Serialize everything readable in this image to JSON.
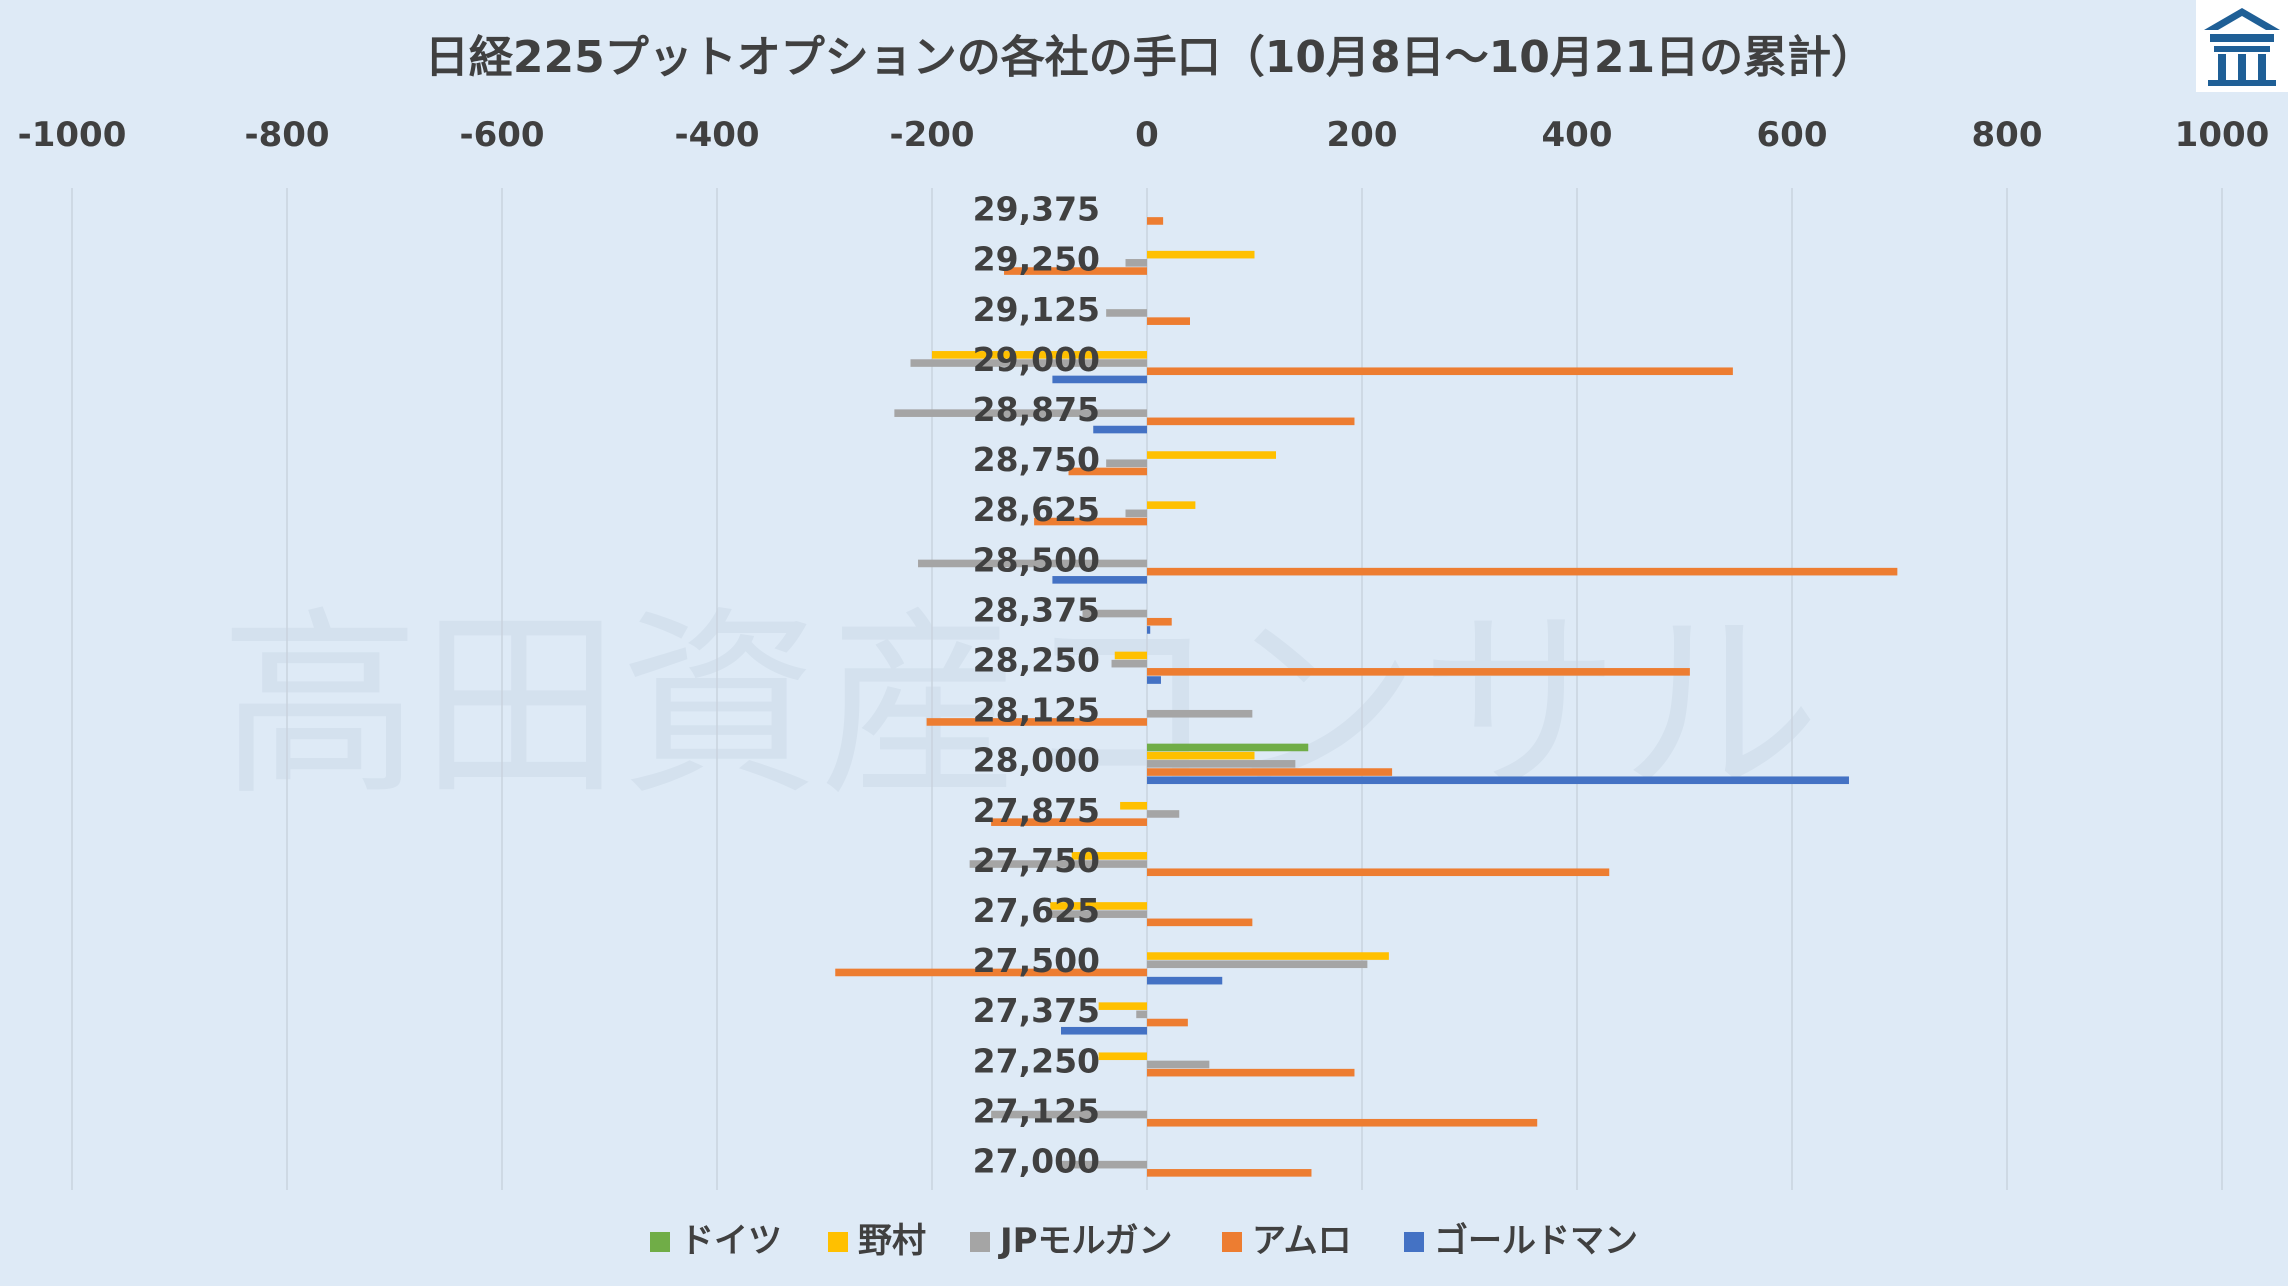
{
  "watermark": "高田資産コンサル",
  "logo": {
    "name": "takata-logo"
  },
  "chart_data": {
    "type": "bar",
    "orientation": "horizontal",
    "title": "日経225プットオプションの各社の手口（10月8日～10月21日の累計）",
    "xlim": [
      -1000,
      1000
    ],
    "xticks": [
      "-1000",
      "-800",
      "-600",
      "-400",
      "-200",
      "0",
      "200",
      "400",
      "600",
      "800",
      "1000"
    ],
    "grid": true,
    "legend_position": "bottom",
    "categories": [
      "29,375",
      "29,250",
      "29,125",
      "29,000",
      "28,875",
      "28,750",
      "28,625",
      "28,500",
      "28,375",
      "28,250",
      "28,125",
      "28,000",
      "27,875",
      "27,750",
      "27,625",
      "27,500",
      "27,375",
      "27,250",
      "27,125",
      "27,000"
    ],
    "series": [
      {
        "name": "ドイツ",
        "color": "#70ad47",
        "values": [
          0,
          0,
          0,
          0,
          0,
          0,
          0,
          0,
          0,
          0,
          0,
          150,
          0,
          0,
          0,
          0,
          0,
          0,
          0,
          0
        ]
      },
      {
        "name": "野村",
        "color": "#ffc000",
        "values": [
          0,
          100,
          0,
          -200,
          0,
          120,
          45,
          0,
          0,
          -30,
          0,
          100,
          -25,
          -70,
          -90,
          225,
          -45,
          -45,
          0,
          0
        ]
      },
      {
        "name": "JPモルガン",
        "color": "#a5a5a5",
        "values": [
          0,
          -20,
          -38,
          -220,
          -235,
          -38,
          -20,
          -213,
          -60,
          -33,
          98,
          138,
          30,
          -165,
          -90,
          205,
          -10,
          58,
          -145,
          -80
        ]
      },
      {
        "name": "アムロ",
        "color": "#ed7d31",
        "values": [
          15,
          -133,
          40,
          545,
          193,
          -73,
          -105,
          698,
          23,
          505,
          -205,
          228,
          -145,
          430,
          98,
          -290,
          38,
          193,
          363,
          153
        ]
      },
      {
        "name": "ゴールドマン",
        "color": "#4472c4",
        "values": [
          0,
          0,
          0,
          -88,
          -50,
          0,
          0,
          -88,
          3,
          13,
          0,
          653,
          0,
          0,
          0,
          70,
          -80,
          0,
          0,
          0
        ]
      }
    ]
  }
}
